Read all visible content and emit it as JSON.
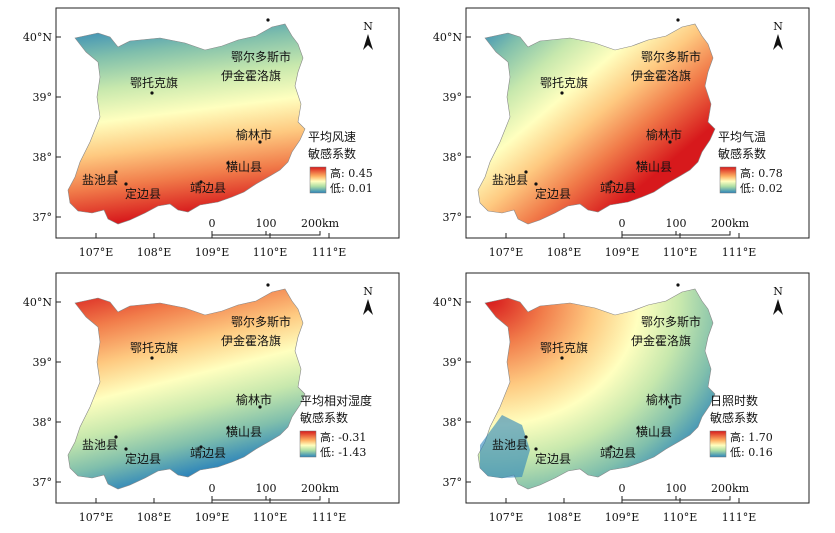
{
  "axes": {
    "lon_ticks": [
      "107°E",
      "108°E",
      "109°E",
      "110°E",
      "111°E"
    ],
    "lat_ticks_top": [
      "40°N",
      "39°",
      "38°",
      "37°"
    ],
    "lat_ticks_bottom": [
      "40°N",
      "39°",
      "38°",
      "37°"
    ]
  },
  "north_label": "N",
  "scalebar": {
    "labels": [
      "0",
      "100",
      "200km"
    ]
  },
  "cities": {
    "ordos": "鄂尔多斯市",
    "ejin": "伊金霍洛旗",
    "etuoke": "鄂托克旗",
    "yulin": "榆林市",
    "hengshan": "横山县",
    "yanchi": "盐池县",
    "dingbian": "定边县",
    "jingbian": "靖边县"
  },
  "maps": [
    {
      "title1": "平均风速",
      "title2": "敏感系数",
      "high": "高: 0.45",
      "low": "低: 0.01",
      "pattern": "wind"
    },
    {
      "title1": "平均气温",
      "title2": "敏感系数",
      "high": "高: 0.78",
      "low": "低: 0.02",
      "pattern": "temp"
    },
    {
      "title1": "平均相对湿度",
      "title2": "敏感系数",
      "high": "高: -0.31",
      "low": "低: -1.43",
      "pattern": "humid"
    },
    {
      "title1": "日照时数",
      "title2": "敏感系数",
      "high": "高: 1.70",
      "low": "低: 0.16",
      "pattern": "sun"
    }
  ],
  "colors": {
    "high": "#d7191c",
    "mid": "#ffffbf",
    "low": "#2b83ba"
  }
}
